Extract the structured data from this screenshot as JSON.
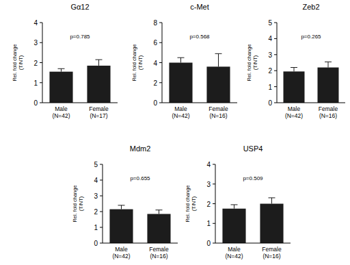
{
  "chart_data": [
    {
      "type": "bar",
      "title": "Gα12",
      "annotation": "p=0.785",
      "y_label": "Rel. fold change\n(T/NT)",
      "categories": [
        "Male\n(N=42)",
        "Female\n(N=17)"
      ],
      "values": [
        1.55,
        1.85
      ],
      "errors": [
        0.15,
        0.3
      ],
      "color": "#1c1c1c",
      "ylim": [
        0,
        4
      ],
      "yticks": [
        0,
        1,
        2,
        3,
        4
      ],
      "grid": false
    },
    {
      "type": "bar",
      "title": "c-Met",
      "annotation": "p=0.568",
      "y_label": "Rel. fold change\n(T/NT)",
      "categories": [
        "Male\n(N=42)",
        "Female\n(N=16)"
      ],
      "values": [
        4.0,
        3.6
      ],
      "errors": [
        0.5,
        1.3
      ],
      "color": "#1c1c1c",
      "ylim": [
        0,
        8
      ],
      "yticks": [
        0,
        2,
        4,
        6,
        8
      ],
      "grid": false
    },
    {
      "type": "bar",
      "title": "Zeb2",
      "annotation": "p=0.265",
      "y_label": "Rel. fold change\n(T/NT)",
      "categories": [
        "Male\n(N=42)",
        "Female\n(N=16)"
      ],
      "values": [
        1.95,
        2.2
      ],
      "errors": [
        0.25,
        0.35
      ],
      "color": "#1c1c1c",
      "ylim": [
        0,
        5
      ],
      "yticks": [
        0,
        1,
        2,
        3,
        4,
        5
      ],
      "grid": false
    },
    {
      "type": "bar",
      "title": "Mdm2",
      "annotation": "p=0.655",
      "y_label": "Rel. fold change\n(T/NT)",
      "categories": [
        "Male\n(N=42)",
        "Female\n(N=16)"
      ],
      "values": [
        2.15,
        1.85
      ],
      "errors": [
        0.25,
        0.25
      ],
      "color": "#1c1c1c",
      "ylim": [
        0,
        5
      ],
      "yticks": [
        0,
        1,
        2,
        3,
        4,
        5
      ],
      "grid": false
    },
    {
      "type": "bar",
      "title": "USP4",
      "annotation": "p=0.509",
      "y_label": "Rel. fold change\n(T/NT)",
      "categories": [
        "Male\n(N=42)",
        "Female\n(N=16)"
      ],
      "values": [
        1.75,
        2.0
      ],
      "errors": [
        0.2,
        0.3
      ],
      "color": "#1c1c1c",
      "ylim": [
        0,
        4
      ],
      "yticks": [
        0,
        1,
        2,
        3,
        4
      ],
      "grid": false
    }
  ]
}
